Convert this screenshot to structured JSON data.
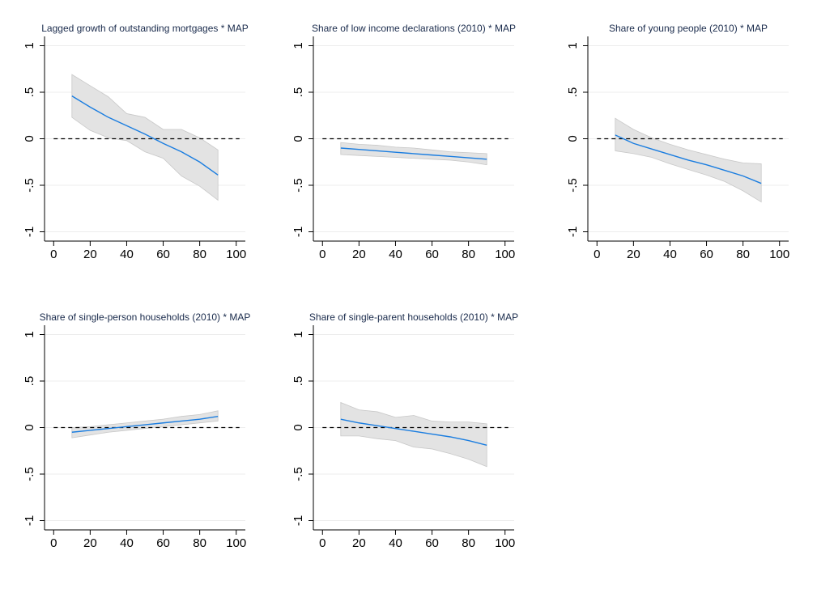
{
  "chart_data": [
    {
      "type": "line",
      "title": "Lagged growth of outstanding mortgages * MAP",
      "x": [
        10,
        20,
        30,
        40,
        50,
        60,
        70,
        80,
        90
      ],
      "values": [
        0.46,
        0.34,
        0.23,
        0.14,
        0.05,
        -0.05,
        -0.14,
        -0.25,
        -0.39
      ],
      "ci_lower": [
        0.23,
        0.09,
        0.01,
        -0.02,
        -0.14,
        -0.21,
        -0.4,
        -0.51,
        -0.66
      ],
      "ci_upper": [
        0.69,
        0.57,
        0.45,
        0.27,
        0.23,
        0.1,
        0.1,
        0.01,
        -0.12
      ],
      "color": "#1a7de0",
      "band_color": "#e3e3e3",
      "hline": 0,
      "xlim": [
        -5,
        105
      ],
      "xticks": [
        0,
        20,
        40,
        60,
        80,
        100
      ],
      "ylim": [
        -1.1,
        1.1
      ],
      "yticks": [
        -1,
        {
          "value": -0.5,
          "label": "-.5"
        },
        0,
        {
          "value": 0.5,
          "label": ".5"
        },
        1
      ],
      "grid": true
    },
    {
      "type": "line",
      "title": "Share of low income declarations (2010) * MAP",
      "x": [
        10,
        20,
        30,
        40,
        50,
        60,
        70,
        80,
        90
      ],
      "values": [
        -0.1,
        -0.115,
        -0.13,
        -0.145,
        -0.16,
        -0.175,
        -0.19,
        -0.205,
        -0.22
      ],
      "ci_lower": [
        -0.17,
        -0.18,
        -0.19,
        -0.2,
        -0.21,
        -0.22,
        -0.23,
        -0.25,
        -0.28
      ],
      "ci_upper": [
        -0.04,
        -0.06,
        -0.07,
        -0.09,
        -0.1,
        -0.12,
        -0.14,
        -0.15,
        -0.16
      ],
      "color": "#1a7de0",
      "band_color": "#e3e3e3",
      "hline": 0,
      "xlim": [
        -5,
        105
      ],
      "xticks": [
        0,
        20,
        40,
        60,
        80,
        100
      ],
      "ylim": [
        -1.1,
        1.1
      ],
      "yticks": [
        -1,
        {
          "value": -0.5,
          "label": "-.5"
        },
        0,
        {
          "value": 0.5,
          "label": ".5"
        },
        1
      ],
      "grid": true
    },
    {
      "type": "line",
      "title": "Share of young people (2010) * MAP",
      "x": [
        10,
        20,
        30,
        40,
        50,
        60,
        70,
        80,
        90
      ],
      "values": [
        0.04,
        -0.05,
        -0.11,
        -0.17,
        -0.23,
        -0.28,
        -0.34,
        -0.4,
        -0.48
      ],
      "ci_lower": [
        -0.13,
        -0.16,
        -0.2,
        -0.27,
        -0.33,
        -0.39,
        -0.46,
        -0.56,
        -0.68
      ],
      "ci_upper": [
        0.22,
        0.1,
        0.01,
        -0.06,
        -0.12,
        -0.17,
        -0.22,
        -0.26,
        -0.27
      ],
      "color": "#1a7de0",
      "band_color": "#e3e3e3",
      "hline": 0,
      "xlim": [
        -5,
        105
      ],
      "xticks": [
        0,
        20,
        40,
        60,
        80,
        100
      ],
      "ylim": [
        -1.1,
        1.1
      ],
      "yticks": [
        -1,
        {
          "value": -0.5,
          "label": "-.5"
        },
        0,
        {
          "value": 0.5,
          "label": ".5"
        },
        1
      ],
      "grid": true
    },
    {
      "type": "line",
      "title": "Share of single-person households (2010) * MAP",
      "x": [
        10,
        20,
        30,
        40,
        50,
        60,
        70,
        80,
        90
      ],
      "values": [
        -0.05,
        -0.03,
        -0.01,
        0.01,
        0.03,
        0.05,
        0.07,
        0.09,
        0.12
      ],
      "ci_lower": [
        -0.11,
        -0.08,
        -0.05,
        -0.03,
        -0.01,
        0.01,
        0.03,
        0.05,
        0.07
      ],
      "ci_upper": [
        0.0,
        0.01,
        0.03,
        0.05,
        0.07,
        0.09,
        0.12,
        0.14,
        0.18
      ],
      "color": "#1a7de0",
      "band_color": "#e3e3e3",
      "hline": 0,
      "xlim": [
        -5,
        105
      ],
      "xticks": [
        0,
        20,
        40,
        60,
        80,
        100
      ],
      "ylim": [
        -1.1,
        1.1
      ],
      "yticks": [
        -1,
        {
          "value": -0.5,
          "label": "-.5"
        },
        0,
        {
          "value": 0.5,
          "label": ".5"
        },
        1
      ],
      "grid": true
    },
    {
      "type": "line",
      "title": "Share of single-parent households (2010) * MAP",
      "x": [
        10,
        20,
        30,
        40,
        50,
        60,
        70,
        80,
        90
      ],
      "values": [
        0.09,
        0.05,
        0.02,
        -0.01,
        -0.04,
        -0.07,
        -0.1,
        -0.14,
        -0.19
      ],
      "ci_lower": [
        -0.09,
        -0.09,
        -0.12,
        -0.14,
        -0.21,
        -0.23,
        -0.28,
        -0.34,
        -0.42
      ],
      "ci_upper": [
        0.27,
        0.19,
        0.17,
        0.11,
        0.13,
        0.07,
        0.06,
        0.06,
        0.04
      ],
      "color": "#1a7de0",
      "band_color": "#e3e3e3",
      "hline": 0,
      "xlim": [
        -5,
        105
      ],
      "xticks": [
        0,
        20,
        40,
        60,
        80,
        100
      ],
      "ylim": [
        -1.1,
        1.1
      ],
      "yticks": [
        -1,
        {
          "value": -0.5,
          "label": "-.5"
        },
        0,
        {
          "value": 0.5,
          "label": ".5"
        },
        1
      ],
      "grid": true
    }
  ]
}
